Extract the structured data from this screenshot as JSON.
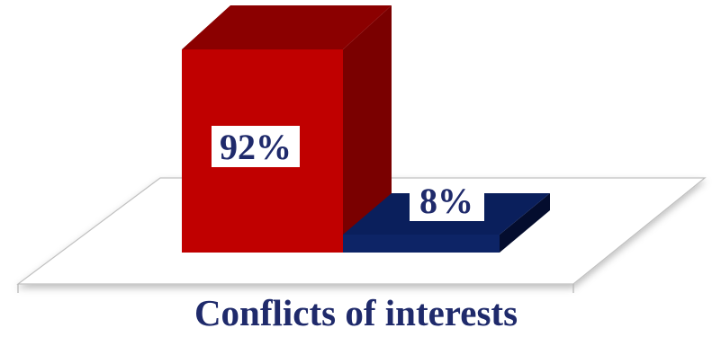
{
  "chart_data": {
    "type": "bar",
    "style": "3d",
    "categories": [
      "Conflicts of interests"
    ],
    "series": [
      {
        "values": [
          92
        ],
        "label": "92%",
        "color": "#c00000"
      },
      {
        "values": [
          8
        ],
        "label": "8%",
        "color": "#0a1f5c"
      }
    ],
    "ylim": [
      0,
      100
    ],
    "grid": false,
    "legend": "none",
    "floor_color": "#ffffff",
    "axis_color": "#b3b3b3",
    "text_color": "#1f2a6b"
  }
}
